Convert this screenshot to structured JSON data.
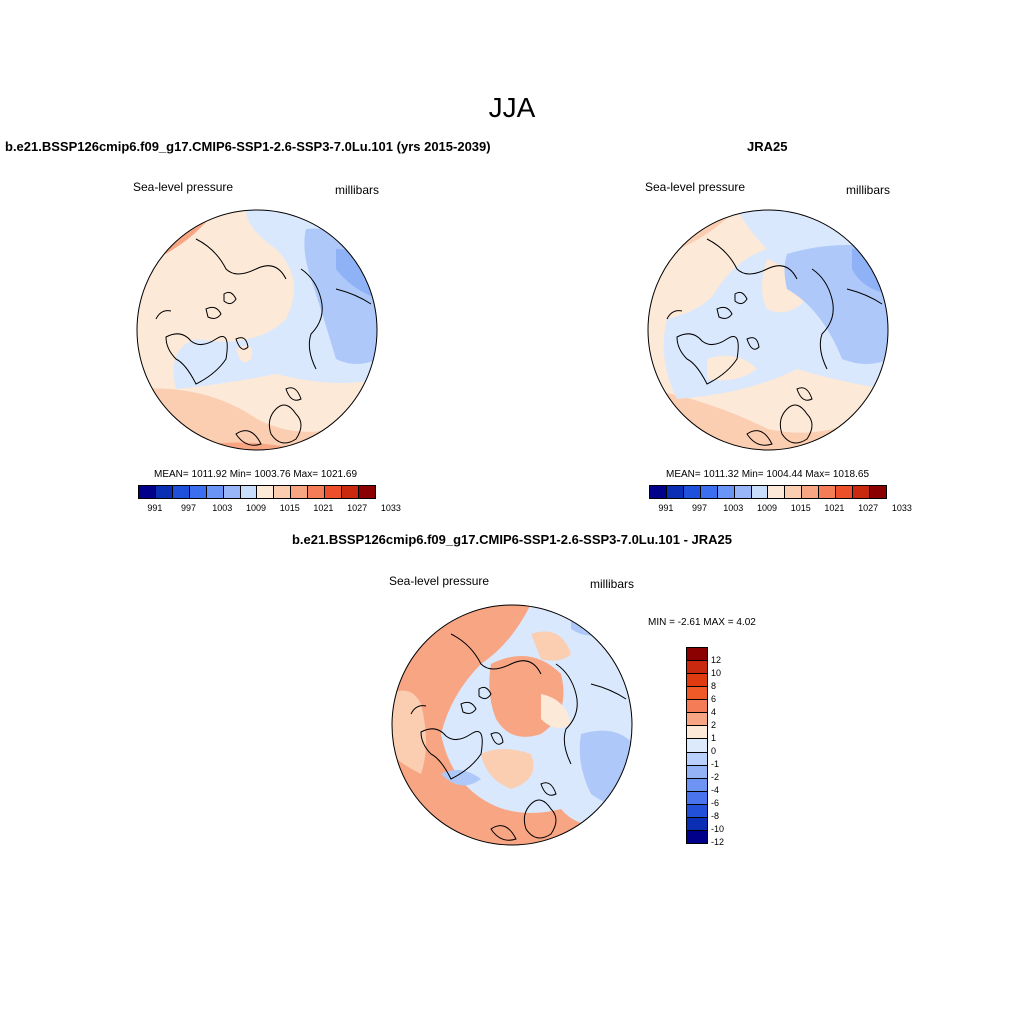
{
  "figure": {
    "title": "JJA"
  },
  "panels": [
    {
      "title": "b.e21.BSSP126cmip6.f09_g17.CMIP6-SSP1-2.6-SSP3-7.0Lu.101 (yrs 2015-2039)",
      "left_label": "Sea-level pressure",
      "right_label": "millibars",
      "stats": "MEAN= 1011.92  Min= 1003.76  Max= 1021.69"
    },
    {
      "title": "JRA25",
      "left_label": "Sea-level pressure",
      "right_label": "millibars",
      "stats": "MEAN= 1011.32  Min= 1004.44  Max= 1018.65"
    },
    {
      "title": "b.e21.BSSP126cmip6.f09_g17.CMIP6-SSP1-2.6-SSP3-7.0Lu.101 - JRA25",
      "left_label": "Sea-level pressure",
      "right_label": "millibars",
      "stats": "MIN =  -2.61 MAX =   4.02"
    }
  ],
  "colorbar_abs": {
    "colors": [
      "#00008b",
      "#0a2fb4",
      "#1e50dc",
      "#3b6ff0",
      "#6a94f5",
      "#98b6f8",
      "#c8dcfc",
      "#fde9d8",
      "#fbcdb1",
      "#f8a584",
      "#f47c57",
      "#ec4f2a",
      "#c8290f",
      "#8b0000"
    ],
    "tick_labels": [
      "991",
      "997",
      "1003",
      "1009",
      "1015",
      "1021",
      "1027",
      "1033"
    ]
  },
  "colorbar_diff": {
    "colors": [
      "#8b0000",
      "#c8290f",
      "#e03a10",
      "#f05a28",
      "#f47c57",
      "#f8a584",
      "#fde9d8",
      "#ddeafc",
      "#b8d0fb",
      "#94b3f7",
      "#6d94f2",
      "#4a74ee",
      "#2250d8",
      "#0a2fb4",
      "#00008b"
    ],
    "tick_labels": [
      "12",
      "10",
      "8",
      "6",
      "4",
      "2",
      "1",
      "0",
      "-1",
      "-2",
      "-4",
      "-6",
      "-8",
      "-10",
      "-12"
    ]
  },
  "map_colors": {
    "land_outline": "#000000",
    "abs_neutral_warm": "#fde9d8",
    "abs_neutral_cool": "#d9e8fc",
    "abs_blue": "#aec9f9",
    "abs_blue_dark": "#8fb1f6",
    "abs_warm": "#fbcdb1",
    "abs_warm2": "#f8a584",
    "diff_warm": "#f8a584",
    "diff_warm_light": "#fbcdb1",
    "diff_neutral": "#fde9d8",
    "diff_cool": "#d9e8fc",
    "diff_blue": "#aec9f9"
  }
}
